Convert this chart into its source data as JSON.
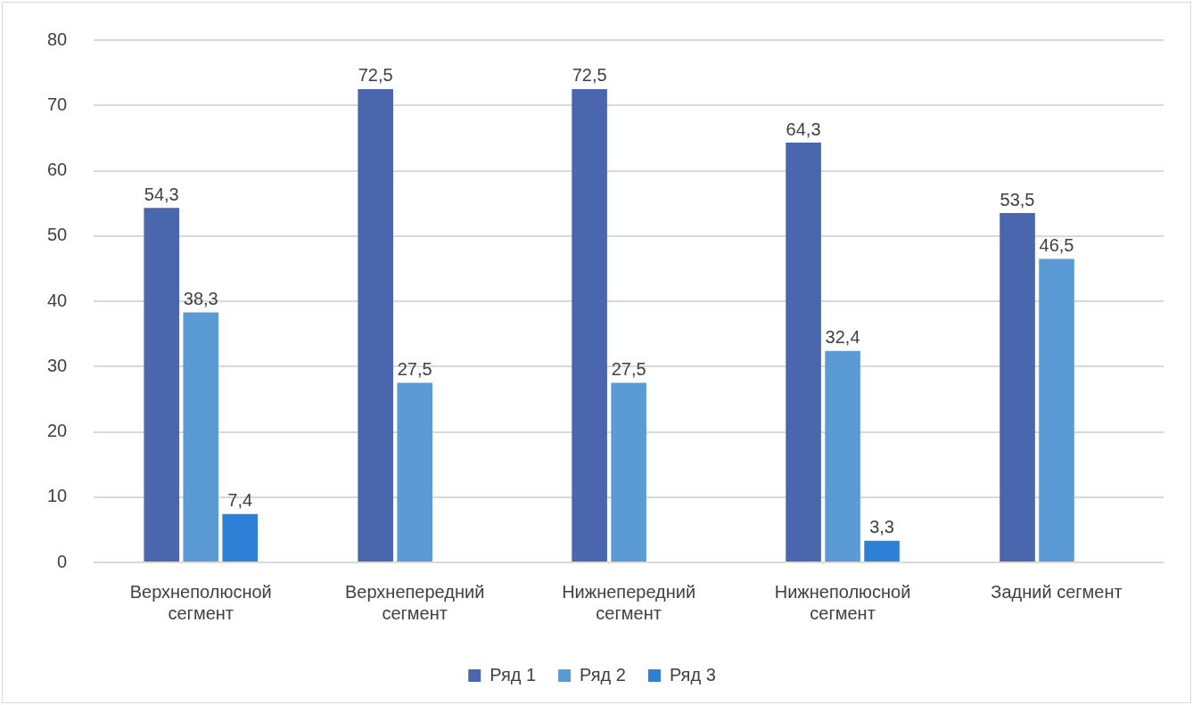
{
  "chart_data": {
    "type": "bar",
    "categories": [
      "Верхнеполюсной сегмент",
      "Верхнепередний сегмент",
      "Нижнепередний сегмент",
      "Нижнеполюсной сегмент",
      "Задний сегмент"
    ],
    "series": [
      {
        "name": "Ряд 1",
        "color": "#4a66ac",
        "values": [
          54.3,
          72.5,
          72.5,
          64.3,
          53.5
        ],
        "value_labels": [
          "54,3",
          "72,5",
          "72,5",
          "64,3",
          "53,5"
        ]
      },
      {
        "name": "Ряд 2",
        "color": "#5b9bd5",
        "values": [
          38.3,
          27.5,
          27.5,
          32.4,
          46.5
        ],
        "value_labels": [
          "38,3",
          "27,5",
          "27,5",
          "32,4",
          "46,5"
        ]
      },
      {
        "name": "Ряд 3",
        "color": "#2e7fd6",
        "values": [
          7.4,
          null,
          null,
          3.3,
          null
        ],
        "value_labels": [
          "7,4",
          null,
          null,
          "3,3",
          null
        ]
      }
    ],
    "ylim": [
      0,
      80
    ],
    "yticks": [
      0,
      10,
      20,
      30,
      40,
      50,
      60,
      70,
      80
    ],
    "grid": "y",
    "legend": "bottom"
  }
}
